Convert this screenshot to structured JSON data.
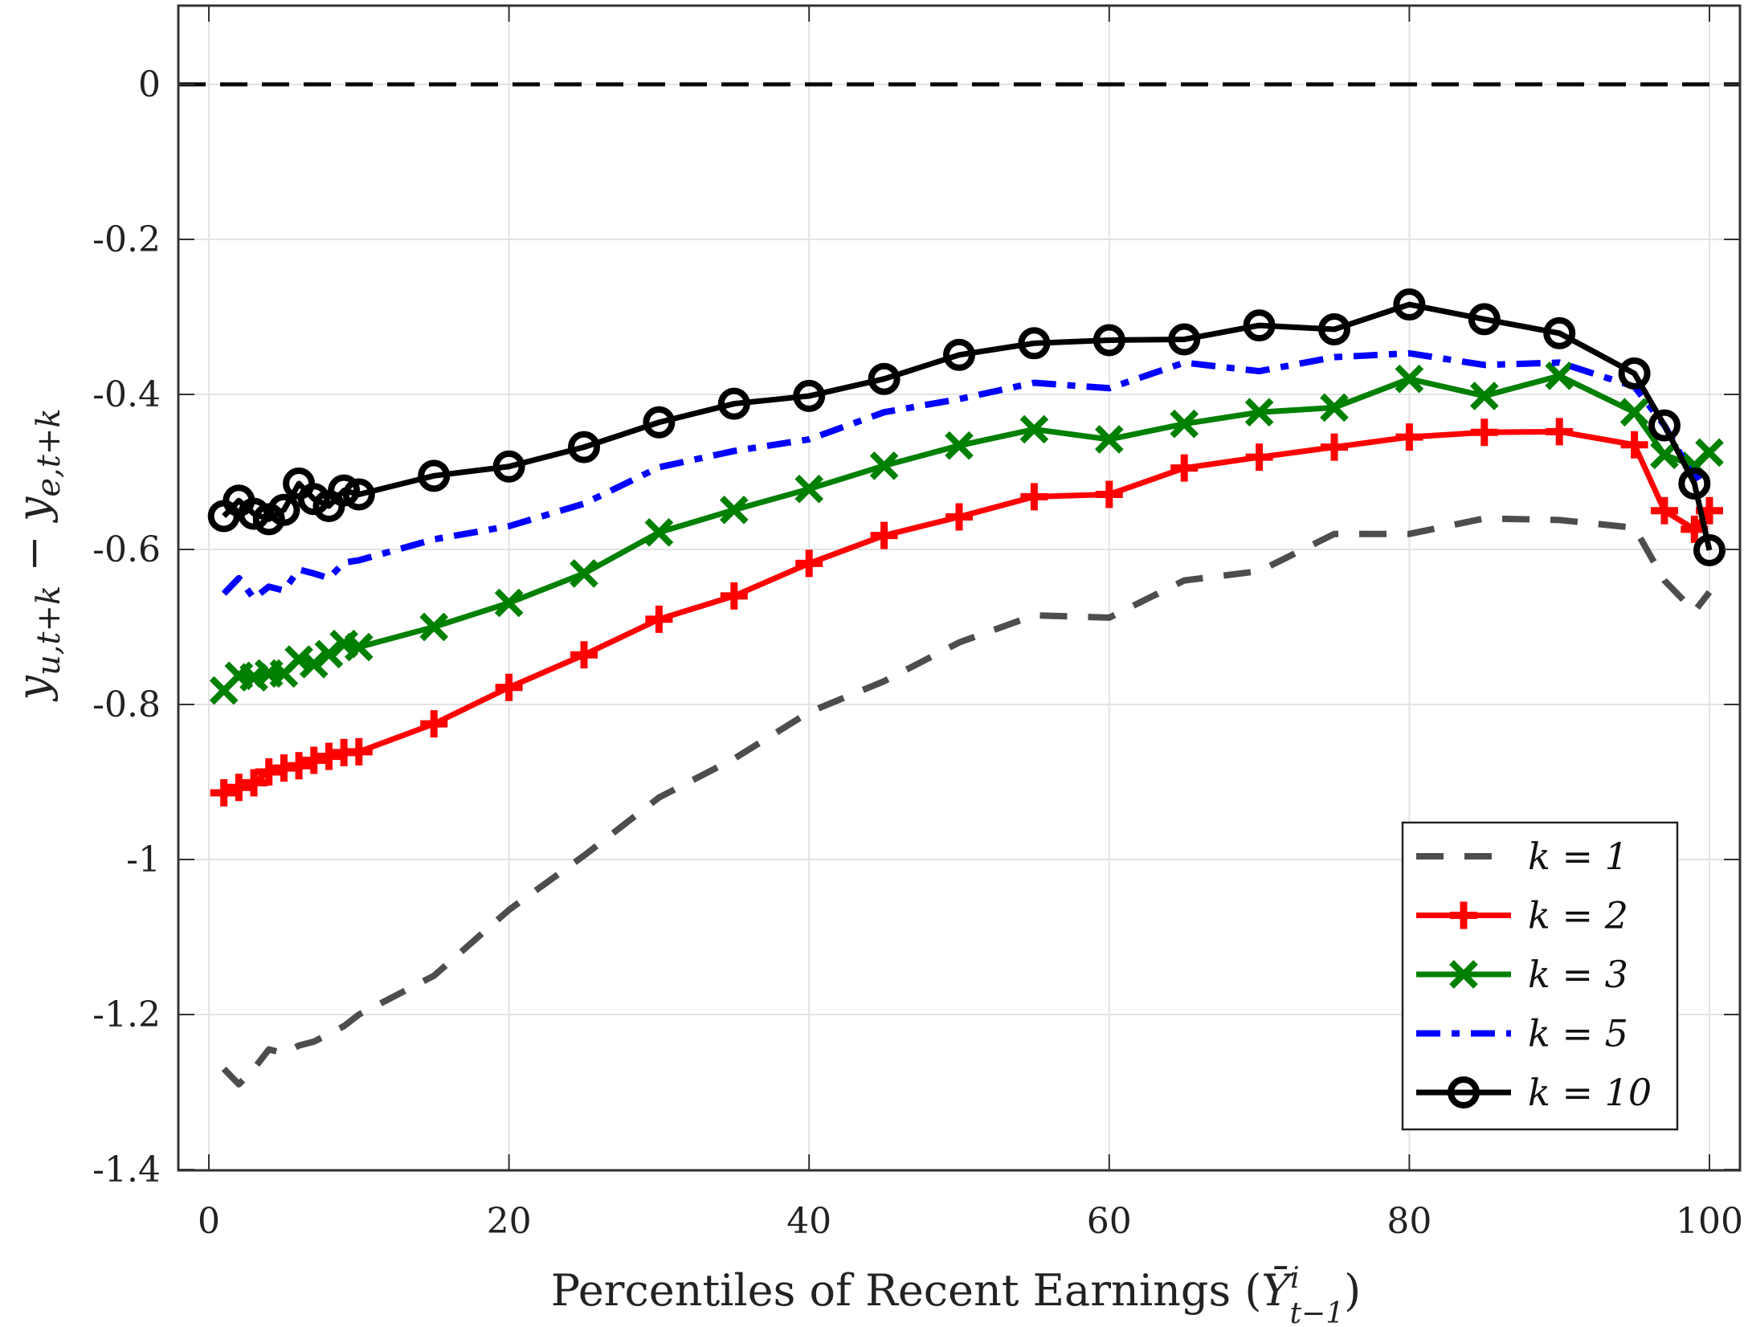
{
  "chart_data": {
    "type": "line",
    "title": "",
    "xlabel": "Percentiles of Recent Earnings (Ȳᵢ t−1)",
    "xlabel_text": "Percentiles of Recent Earnings (",
    "xlabel_sym": "Ȳ",
    "xlabel_sup": "i",
    "xlabel_sub": "t−1",
    "xlabel_close": ")",
    "ylabel": "y u,t+k − y e,t+k",
    "xlim": [
      0,
      100
    ],
    "ylim": [
      -1.4,
      0.1
    ],
    "xticks": [
      0,
      20,
      40,
      60,
      80,
      100
    ],
    "xtick_labels": [
      "0",
      "20",
      "40",
      "60",
      "80",
      "100"
    ],
    "yticks": [
      0,
      -0.2,
      -0.4,
      -0.6,
      -0.8,
      -1,
      -1.2,
      -1.4
    ],
    "ytick_labels": [
      "0",
      "-0.2",
      "-0.4",
      "-0.6",
      "-0.8",
      "-1",
      "-1.2",
      "-1.4"
    ],
    "grid": true,
    "reference_line": {
      "y": 0,
      "style": "dashed",
      "color": "#000000"
    },
    "legend_position": "bottom-right",
    "x": [
      1,
      2,
      3,
      4,
      5,
      6,
      7,
      8,
      9,
      10,
      15,
      20,
      25,
      30,
      35,
      40,
      45,
      50,
      55,
      60,
      65,
      70,
      75,
      80,
      85,
      90,
      95,
      97,
      99,
      100
    ],
    "series": [
      {
        "name": "k = 1",
        "color": "#4d4d4d",
        "style": "dashed",
        "marker": "none",
        "values": [
          -1.27,
          -1.29,
          -1.27,
          -1.245,
          -1.25,
          -1.24,
          -1.235,
          -1.225,
          -1.215,
          -1.2,
          -1.15,
          -1.065,
          -0.995,
          -0.92,
          -0.87,
          -0.81,
          -0.77,
          -0.72,
          -0.685,
          -0.688,
          -0.64,
          -0.628,
          -0.58,
          -0.58,
          -0.56,
          -0.562,
          -0.572,
          -0.64,
          -0.68,
          -0.655
        ]
      },
      {
        "name": "k = 2",
        "color": "#ff0000",
        "style": "solid",
        "marker": "plus",
        "values": [
          -0.914,
          -0.907,
          -0.901,
          -0.887,
          -0.882,
          -0.879,
          -0.872,
          -0.867,
          -0.862,
          -0.861,
          -0.825,
          -0.778,
          -0.736,
          -0.69,
          -0.66,
          -0.618,
          -0.582,
          -0.558,
          -0.532,
          -0.529,
          -0.495,
          -0.481,
          -0.468,
          -0.455,
          -0.449,
          -0.448,
          -0.465,
          -0.55,
          -0.574,
          -0.55
        ]
      },
      {
        "name": "k = 3",
        "color": "#008000",
        "style": "solid",
        "marker": "x",
        "values": [
          -0.782,
          -0.763,
          -0.765,
          -0.76,
          -0.76,
          -0.742,
          -0.748,
          -0.735,
          -0.722,
          -0.726,
          -0.7,
          -0.669,
          -0.631,
          -0.578,
          -0.549,
          -0.522,
          -0.492,
          -0.466,
          -0.445,
          -0.458,
          -0.438,
          -0.423,
          -0.417,
          -0.38,
          -0.402,
          -0.376,
          -0.423,
          -0.478,
          -0.492,
          -0.475
        ]
      },
      {
        "name": "k = 5",
        "color": "#0000ff",
        "style": "dashdot",
        "marker": "none",
        "values": [
          -0.657,
          -0.637,
          -0.663,
          -0.648,
          -0.653,
          -0.626,
          -0.631,
          -0.637,
          -0.617,
          -0.614,
          -0.587,
          -0.57,
          -0.541,
          -0.494,
          -0.473,
          -0.458,
          -0.423,
          -0.406,
          -0.385,
          -0.392,
          -0.359,
          -0.37,
          -0.352,
          -0.347,
          -0.362,
          -0.359,
          -0.39,
          -0.44,
          -0.509,
          -0.497
        ]
      },
      {
        "name": "k = 10",
        "color": "#000000",
        "style": "solid",
        "marker": "circle",
        "values": [
          -0.557,
          -0.537,
          -0.554,
          -0.561,
          -0.549,
          -0.515,
          -0.535,
          -0.544,
          -0.524,
          -0.529,
          -0.505,
          -0.493,
          -0.468,
          -0.436,
          -0.412,
          -0.402,
          -0.38,
          -0.349,
          -0.334,
          -0.33,
          -0.329,
          -0.311,
          -0.316,
          -0.284,
          -0.303,
          -0.321,
          -0.373,
          -0.44,
          -0.515,
          -0.601
        ]
      }
    ]
  }
}
